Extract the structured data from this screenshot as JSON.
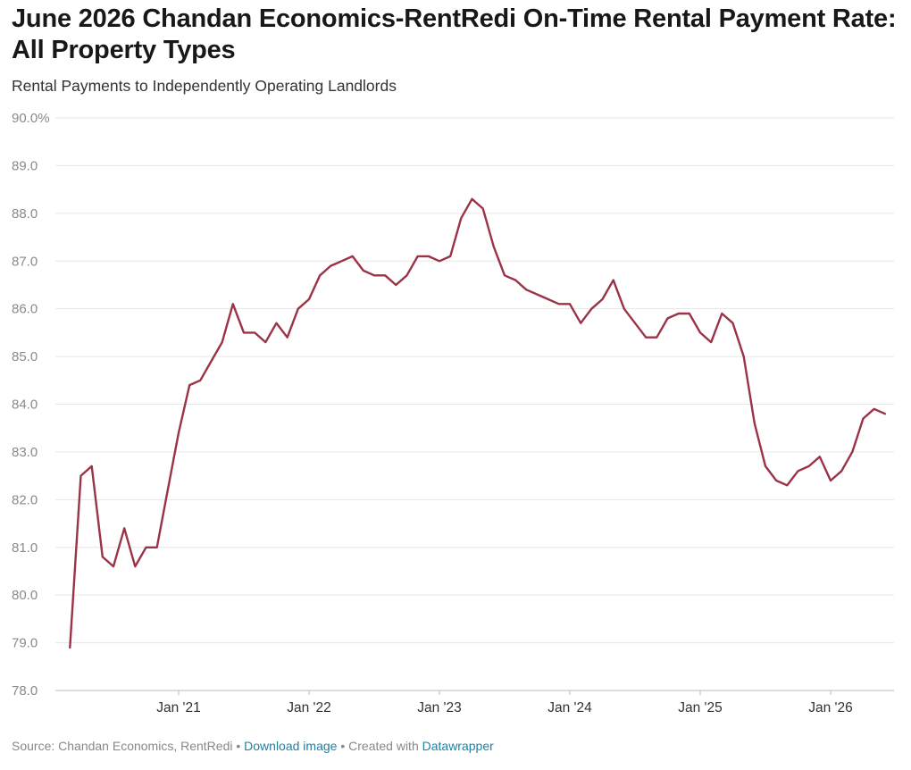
{
  "header": {
    "title": "June 2026 Chandan Economics-RentRedi On-Time Rental Payment Rate: All Property Types",
    "subtitle": "Rental Payments to Independently Operating Landlords"
  },
  "footer": {
    "source": "Source: Chandan Economics, RentRedi",
    "sep1": " • ",
    "download_label": "Download image",
    "sep2": " • Created with ",
    "datawrapper_label": "Datawrapper"
  },
  "colors": {
    "line": "#9b3346",
    "grid": "#e6e6e6",
    "axis": "#bdbdbd"
  },
  "chart_data": {
    "type": "line",
    "title": "June 2026 Chandan Economics-RentRedi On-Time Rental Payment Rate: All Property Types",
    "subtitle": "Rental Payments to Independently Operating Landlords",
    "xlabel": "",
    "ylabel": "",
    "ylim": [
      78.0,
      90.0
    ],
    "y_ticks": [
      {
        "value": 90,
        "label": "90.0%"
      },
      {
        "value": 89,
        "label": "89.0"
      },
      {
        "value": 88,
        "label": "88.0"
      },
      {
        "value": 87,
        "label": "87.0"
      },
      {
        "value": 86,
        "label": "86.0"
      },
      {
        "value": 85,
        "label": "85.0"
      },
      {
        "value": 84,
        "label": "84.0"
      },
      {
        "value": 83,
        "label": "83.0"
      },
      {
        "value": 82,
        "label": "82.0"
      },
      {
        "value": 81,
        "label": "81.0"
      },
      {
        "value": 80,
        "label": "80.0"
      },
      {
        "value": 79,
        "label": "79.0"
      },
      {
        "value": 78,
        "label": "78.0"
      }
    ],
    "x_ticks": [
      {
        "value": "2021-01",
        "label": "Jan '21"
      },
      {
        "value": "2022-01",
        "label": "Jan '22"
      },
      {
        "value": "2023-01",
        "label": "Jan '23"
      },
      {
        "value": "2024-01",
        "label": "Jan '24"
      },
      {
        "value": "2025-01",
        "label": "Jan '25"
      },
      {
        "value": "2026-01",
        "label": "Jan '26"
      }
    ],
    "grid": true,
    "legend": "none",
    "series": [
      {
        "x": [
          "2020-03",
          "2020-04",
          "2020-05",
          "2020-06",
          "2020-07",
          "2020-08",
          "2020-09",
          "2020-10",
          "2020-11",
          "2020-12",
          "2021-01",
          "2021-02",
          "2021-03",
          "2021-04",
          "2021-05",
          "2021-06",
          "2021-07",
          "2021-08",
          "2021-09",
          "2021-10",
          "2021-11",
          "2021-12",
          "2022-01",
          "2022-02",
          "2022-03",
          "2022-04",
          "2022-05",
          "2022-06",
          "2022-07",
          "2022-08",
          "2022-09",
          "2022-10",
          "2022-11",
          "2022-12",
          "2023-01",
          "2023-02",
          "2023-03",
          "2023-04",
          "2023-05",
          "2023-06",
          "2023-07",
          "2023-08",
          "2023-09",
          "2023-10",
          "2023-11",
          "2023-12",
          "2024-01",
          "2024-02",
          "2024-03",
          "2024-04",
          "2024-05",
          "2024-06",
          "2024-07",
          "2024-08",
          "2024-09",
          "2024-10",
          "2024-11",
          "2024-12",
          "2025-01",
          "2025-02",
          "2025-03",
          "2025-04",
          "2025-05",
          "2025-06",
          "2025-07",
          "2025-08",
          "2025-09",
          "2025-10",
          "2025-11",
          "2025-12",
          "2026-01",
          "2026-02",
          "2026-03",
          "2026-04",
          "2026-05",
          "2026-06"
        ],
        "values": [
          78.9,
          82.5,
          82.7,
          80.8,
          80.6,
          81.4,
          80.6,
          81.0,
          81.0,
          82.2,
          83.4,
          84.4,
          84.5,
          84.9,
          85.3,
          86.1,
          85.5,
          85.5,
          85.3,
          85.7,
          85.4,
          86.0,
          86.2,
          86.7,
          86.9,
          87.0,
          87.1,
          86.8,
          86.7,
          86.7,
          86.5,
          86.7,
          87.1,
          87.1,
          87.0,
          87.1,
          87.9,
          88.3,
          88.1,
          87.3,
          86.7,
          86.6,
          86.4,
          86.3,
          86.2,
          86.1,
          86.1,
          85.7,
          86.0,
          86.2,
          86.6,
          86.0,
          85.7,
          85.4,
          85.4,
          85.8,
          85.9,
          85.9,
          85.5,
          85.3,
          85.9,
          85.7,
          85.0,
          83.6,
          82.7,
          82.4,
          82.3,
          82.6,
          82.7,
          82.9,
          82.4,
          82.6,
          83.0,
          83.7,
          83.9,
          83.8
        ]
      }
    ]
  }
}
